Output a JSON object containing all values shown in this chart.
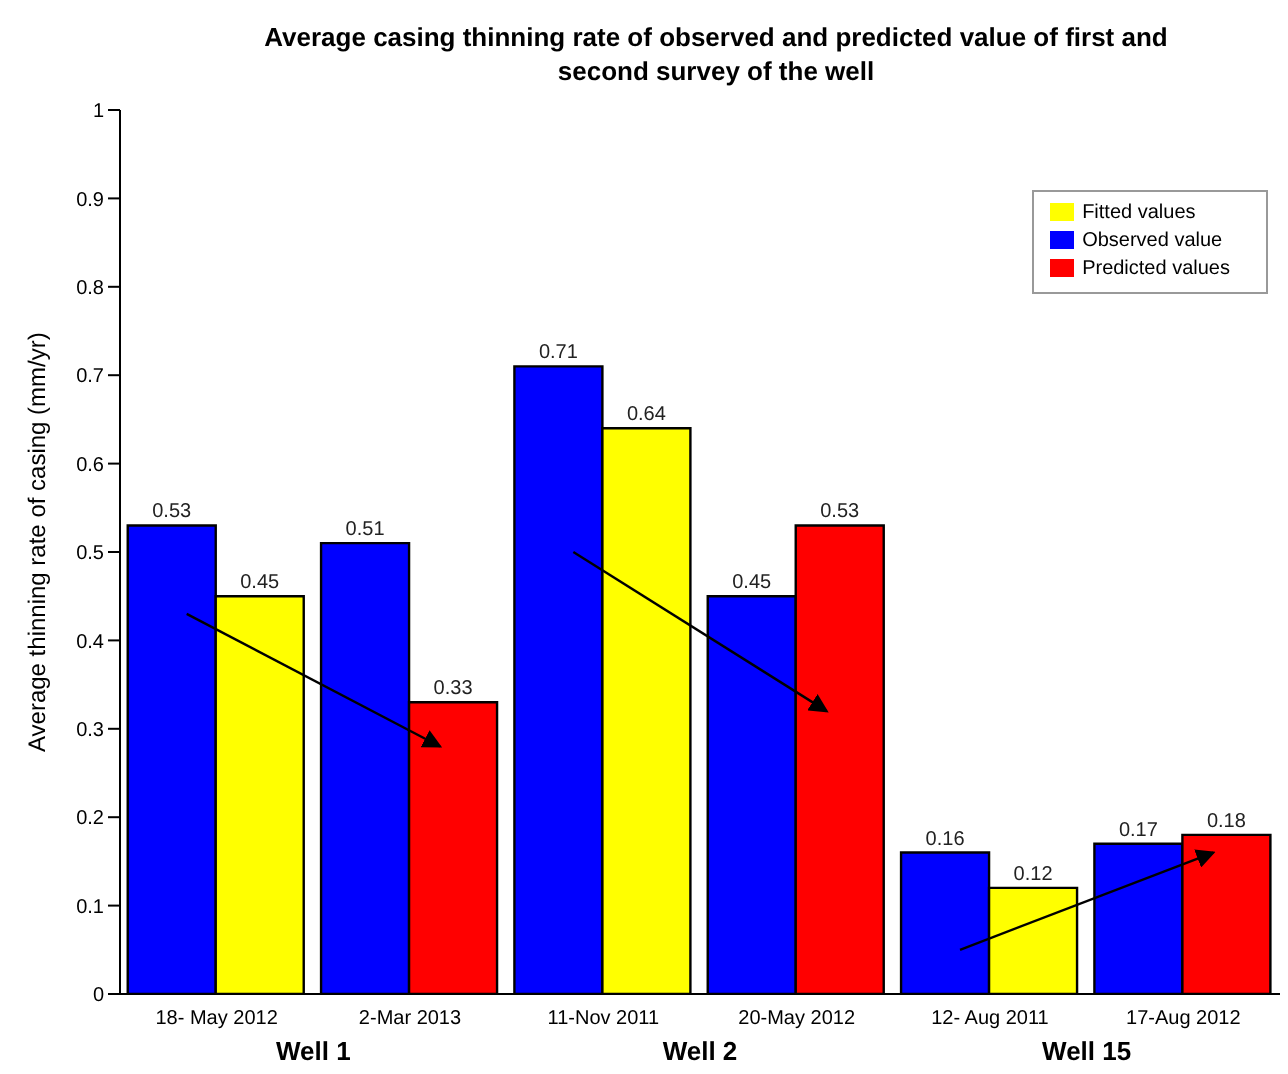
{
  "chart_data": {
    "type": "bar",
    "title": "Average casing thinning rate of observed and predicted value of first and second survey of the well",
    "ylabel": "Average thinning rate of casing (mm/yr)",
    "categories": [
      "18- May 2012",
      "2-Mar 2013",
      "11-Nov 2011",
      "20-May 2012",
      "12- Aug 2011",
      "17-Aug 2012"
    ],
    "series": [
      {
        "name": "Observed value",
        "color": "#0000ff",
        "values": [
          0.53,
          0.51,
          0.71,
          0.45,
          0.16,
          0.17
        ]
      },
      {
        "name": "Fitted values",
        "color": "#ffff00",
        "values": [
          0.45,
          null,
          0.64,
          null,
          0.12,
          null
        ]
      },
      {
        "name": "Predicted values",
        "color": "#ff0000",
        "values": [
          null,
          0.33,
          null,
          0.53,
          null,
          0.18
        ]
      }
    ],
    "data_labels": true,
    "ylim": [
      0,
      1
    ],
    "yticks": [
      0,
      0.1,
      0.2,
      0.3,
      0.4,
      0.5,
      0.6,
      0.7,
      0.8,
      0.9,
      1
    ],
    "grid": false,
    "legend": "top right",
    "annotations": [
      "Well 1",
      "Well 2",
      "Well 15"
    ]
  }
}
